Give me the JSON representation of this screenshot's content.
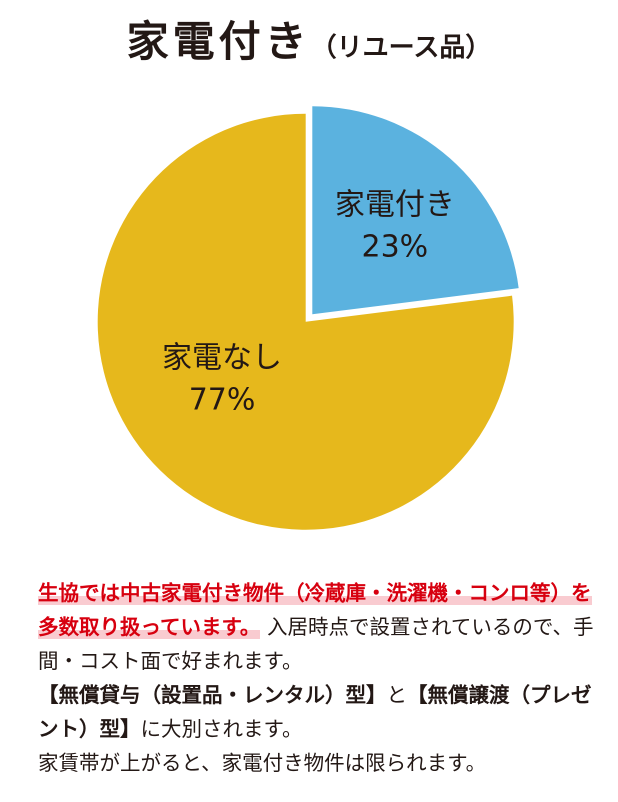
{
  "title": {
    "main": "家電付き",
    "sub": "（リユース品）"
  },
  "chart_data": {
    "type": "pie",
    "title": "家電付き（リユース品）",
    "slices": [
      {
        "label": "家電付き",
        "value": 23,
        "display": "23%",
        "color": "#5bb2df"
      },
      {
        "label": "家電なし",
        "value": 77,
        "display": "77%",
        "color": "#e6b81c"
      }
    ]
  },
  "description": {
    "highlight": "生協では中古家電付き物件（冷蔵庫・洗濯機・コンロ等）を多数取り扱っています。",
    "text1": "入居時点で設置されているので、手間・コスト面で好まれます。",
    "bold1": "【無償貸与（設置品・レンタル）型】",
    "text2": "と",
    "bold2": "【無償譲渡（プレゼント）型】",
    "text3": "に大別されます。",
    "text4": "家賃帯が上がると、家電付き物件は限られます。"
  }
}
